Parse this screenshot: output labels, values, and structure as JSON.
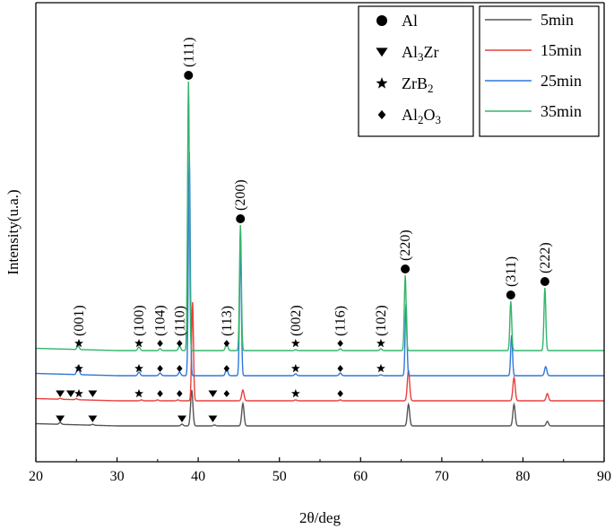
{
  "chart_data": {
    "type": "line",
    "xlabel": "2θ/deg",
    "ylabel": "Intensity(u.a.)",
    "xlim": [
      20,
      90
    ],
    "xticks": [
      "20",
      "30",
      "40",
      "50",
      "60",
      "70",
      "80",
      "90"
    ],
    "yticks_labeled": false,
    "series": [
      {
        "name": "5min",
        "color": "#555555",
        "baseline": 0,
        "peaks": [
          [
            23,
            2
          ],
          [
            27,
            1
          ],
          [
            38,
            2
          ],
          [
            39.2,
            40
          ],
          [
            42,
            1
          ],
          [
            45.5,
            25
          ],
          [
            65.9,
            24
          ],
          [
            78.9,
            24
          ],
          [
            83.0,
            5
          ]
        ]
      },
      {
        "name": "15min",
        "color": "#e8403c",
        "baseline": 28,
        "peaks": [
          [
            23,
            1
          ],
          [
            25,
            1
          ],
          [
            33,
            1
          ],
          [
            35,
            1
          ],
          [
            37.5,
            1
          ],
          [
            39.3,
            110
          ],
          [
            45.5,
            12
          ],
          [
            52,
            1
          ],
          [
            57.5,
            1
          ],
          [
            65.9,
            34
          ],
          [
            78.9,
            26
          ],
          [
            83.0,
            8
          ]
        ]
      },
      {
        "name": "25min",
        "color": "#2f78d8",
        "baseline": 56,
        "peaks": [
          [
            25.2,
            10
          ],
          [
            32.7,
            4
          ],
          [
            35.3,
            3
          ],
          [
            37.7,
            4
          ],
          [
            38.9,
            250
          ],
          [
            43.5,
            8
          ],
          [
            45.2,
            145
          ],
          [
            52,
            2
          ],
          [
            57.5,
            3
          ],
          [
            62.5,
            1
          ],
          [
            65.6,
            80
          ],
          [
            78.6,
            45
          ],
          [
            82.8,
            10
          ]
        ]
      },
      {
        "name": "35min",
        "color": "#33b56b",
        "baseline": 84,
        "peaks": [
          [
            25.2,
            4
          ],
          [
            32.7,
            4
          ],
          [
            35.3,
            2
          ],
          [
            37.7,
            5
          ],
          [
            38.8,
            300
          ],
          [
            43.5,
            8
          ],
          [
            45.2,
            140
          ],
          [
            52,
            1
          ],
          [
            57.5,
            2
          ],
          [
            62.5,
            2
          ],
          [
            65.5,
            84
          ],
          [
            78.5,
            55
          ],
          [
            82.7,
            70
          ]
        ]
      }
    ],
    "peak_labels": [
      {
        "text": "(001)",
        "x": 25.3
      },
      {
        "text": "(100)",
        "x": 32.7
      },
      {
        "text": "(104)",
        "x": 35.3
      },
      {
        "text": "(110)",
        "x": 37.7
      },
      {
        "text": "(111)",
        "x": 38.8
      },
      {
        "text": "(113)",
        "x": 43.5
      },
      {
        "text": "(200)",
        "x": 45.2
      },
      {
        "text": "(002)",
        "x": 52.0
      },
      {
        "text": "(116)",
        "x": 57.5
      },
      {
        "text": "(102)",
        "x": 62.5
      },
      {
        "text": "(220)",
        "x": 65.5
      },
      {
        "text": "(311)",
        "x": 78.5
      },
      {
        "text": "(222)",
        "x": 82.7
      }
    ],
    "markers": [
      {
        "phase": "Al",
        "x": 38.8,
        "series": "35min"
      },
      {
        "phase": "Al",
        "x": 45.2,
        "series": "35min"
      },
      {
        "phase": "Al",
        "x": 65.5,
        "series": "35min"
      },
      {
        "phase": "Al",
        "x": 78.5,
        "series": "35min"
      },
      {
        "phase": "Al",
        "x": 82.7,
        "series": "35min"
      },
      {
        "phase": "ZrB2",
        "x": 25.3,
        "series": "35min"
      },
      {
        "phase": "ZrB2",
        "x": 32.7,
        "series": "35min"
      },
      {
        "phase": "Al2O3",
        "x": 35.3,
        "series": "35min"
      },
      {
        "phase": "Al2O3",
        "x": 37.7,
        "series": "35min"
      },
      {
        "phase": "Al2O3",
        "x": 43.5,
        "series": "35min"
      },
      {
        "phase": "ZrB2",
        "x": 52.0,
        "series": "35min"
      },
      {
        "phase": "Al2O3",
        "x": 57.5,
        "series": "35min"
      },
      {
        "phase": "ZrB2",
        "x": 62.5,
        "series": "35min"
      },
      {
        "phase": "ZrB2",
        "x": 25.3,
        "series": "25min"
      },
      {
        "phase": "ZrB2",
        "x": 32.7,
        "series": "25min"
      },
      {
        "phase": "Al2O3",
        "x": 35.3,
        "series": "25min"
      },
      {
        "phase": "Al2O3",
        "x": 37.7,
        "series": "25min"
      },
      {
        "phase": "Al2O3",
        "x": 43.5,
        "series": "25min"
      },
      {
        "phase": "ZrB2",
        "x": 52.0,
        "series": "25min"
      },
      {
        "phase": "Al2O3",
        "x": 57.5,
        "series": "25min"
      },
      {
        "phase": "ZrB2",
        "x": 62.5,
        "series": "25min"
      },
      {
        "phase": "Al3Zr",
        "x": 23.0,
        "series": "15min"
      },
      {
        "phase": "Al3Zr",
        "x": 24.3,
        "series": "15min"
      },
      {
        "phase": "ZrB2",
        "x": 25.3,
        "series": "15min"
      },
      {
        "phase": "Al3Zr",
        "x": 27.0,
        "series": "15min"
      },
      {
        "phase": "ZrB2",
        "x": 32.7,
        "series": "15min"
      },
      {
        "phase": "Al2O3",
        "x": 35.3,
        "series": "15min"
      },
      {
        "phase": "Al2O3",
        "x": 37.7,
        "series": "15min"
      },
      {
        "phase": "Al3Zr",
        "x": 41.8,
        "series": "15min"
      },
      {
        "phase": "Al2O3",
        "x": 43.5,
        "series": "15min"
      },
      {
        "phase": "ZrB2",
        "x": 52.0,
        "series": "15min"
      },
      {
        "phase": "Al2O3",
        "x": 57.5,
        "series": "15min"
      },
      {
        "phase": "Al3Zr",
        "x": 23.0,
        "series": "5min"
      },
      {
        "phase": "Al3Zr",
        "x": 27.0,
        "series": "5min"
      },
      {
        "phase": "Al3Zr",
        "x": 38.0,
        "series": "5min"
      },
      {
        "phase": "Al3Zr",
        "x": 41.8,
        "series": "5min"
      }
    ],
    "phase_legend": [
      {
        "symbol": "circle",
        "base": "Al",
        "sub": "",
        "tail": ""
      },
      {
        "symbol": "triangle-down",
        "base": "Al",
        "sub": "3",
        "tail": "Zr"
      },
      {
        "symbol": "star",
        "base": "ZrB",
        "sub": "2",
        "tail": ""
      },
      {
        "symbol": "diamond",
        "base": "Al",
        "sub": "2",
        "tail": "O",
        "sub2": "3"
      }
    ],
    "series_legend": [
      "5min",
      "15min",
      "25min",
      "35min"
    ]
  }
}
